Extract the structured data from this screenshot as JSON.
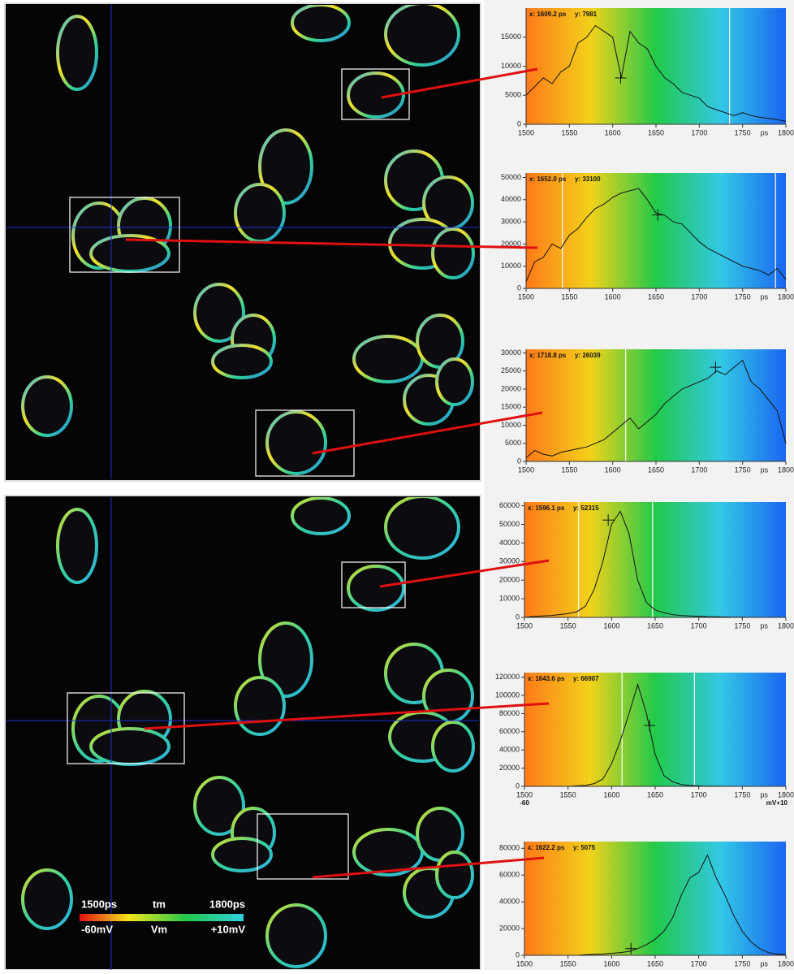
{
  "chart_data": [
    {
      "type": "line",
      "x_label": "ps",
      "xlim": [
        1500,
        1800
      ],
      "xticks": [
        1500,
        1550,
        1600,
        1650,
        1700,
        1750,
        1800
      ],
      "ylim": [
        0,
        20000
      ],
      "yticks": [
        0,
        5000,
        10000,
        15000
      ],
      "x": [
        1500,
        1510,
        1520,
        1530,
        1540,
        1550,
        1560,
        1570,
        1580,
        1590,
        1600,
        1610,
        1620,
        1630,
        1640,
        1650,
        1660,
        1670,
        1680,
        1690,
        1700,
        1710,
        1720,
        1730,
        1740,
        1750,
        1760,
        1770,
        1780,
        1790,
        1800
      ],
      "values": [
        5000,
        6500,
        8000,
        7000,
        9000,
        10000,
        14000,
        15000,
        17000,
        16000,
        15000,
        8000,
        16000,
        14000,
        13000,
        10000,
        8000,
        7000,
        5500,
        5000,
        4500,
        3000,
        2500,
        2000,
        1500,
        2000,
        1500,
        1200,
        1000,
        800,
        500
      ],
      "markers": [
        1735
      ],
      "cursor": {
        "x": {
          "value": 1609.2,
          "label": "x: 1609.2 ps"
        },
        "y": {
          "value": 7981,
          "label": "y: 7981"
        }
      }
    },
    {
      "type": "line",
      "x_label": "ps",
      "xlim": [
        1500,
        1800
      ],
      "xticks": [
        1500,
        1550,
        1600,
        1650,
        1700,
        1750,
        1800
      ],
      "ylim": [
        0,
        52000
      ],
      "yticks": [
        0,
        10000,
        20000,
        30000,
        40000,
        50000
      ],
      "x": [
        1500,
        1510,
        1520,
        1530,
        1540,
        1550,
        1560,
        1570,
        1580,
        1590,
        1600,
        1610,
        1620,
        1630,
        1640,
        1650,
        1660,
        1670,
        1680,
        1690,
        1700,
        1710,
        1720,
        1730,
        1740,
        1750,
        1760,
        1770,
        1780,
        1790,
        1800
      ],
      "values": [
        3000,
        12000,
        14000,
        20000,
        18000,
        24000,
        27000,
        32000,
        36000,
        38000,
        41000,
        43000,
        44000,
        45000,
        40000,
        34000,
        33000,
        30000,
        29000,
        25000,
        21000,
        18000,
        16000,
        14000,
        12000,
        10000,
        9000,
        8000,
        6000,
        9000,
        4000
      ],
      "markers": [
        1542,
        1788
      ],
      "cursor": {
        "x": {
          "value": 1652.0,
          "label": "x: 1652.0 ps"
        },
        "y": {
          "value": 33100,
          "label": "y: 33100"
        }
      }
    },
    {
      "type": "line",
      "x_label": "ps",
      "xlim": [
        1500,
        1800
      ],
      "xticks": [
        1500,
        1550,
        1600,
        1650,
        1700,
        1750,
        1800
      ],
      "ylim": [
        0,
        31000
      ],
      "yticks": [
        0,
        5000,
        10000,
        15000,
        20000,
        25000,
        30000
      ],
      "x": [
        1500,
        1510,
        1520,
        1530,
        1540,
        1550,
        1560,
        1570,
        1580,
        1590,
        1600,
        1610,
        1620,
        1630,
        1640,
        1650,
        1660,
        1670,
        1680,
        1690,
        1700,
        1710,
        1720,
        1730,
        1740,
        1750,
        1760,
        1770,
        1780,
        1790,
        1800
      ],
      "values": [
        1000,
        3000,
        2000,
        1500,
        2500,
        3000,
        3500,
        4000,
        5000,
        6000,
        8000,
        10000,
        12000,
        9000,
        11000,
        13000,
        16000,
        18000,
        20000,
        21000,
        22000,
        23000,
        25000,
        24000,
        26000,
        28000,
        22000,
        20000,
        17000,
        14000,
        5000
      ],
      "markers": [
        1615
      ],
      "cursor": {
        "x": {
          "value": 1718.8,
          "label": "x: 1718.8 ps"
        },
        "y": {
          "value": 26039,
          "label": "y: 26039"
        }
      }
    },
    {
      "type": "line",
      "x_label": "ps",
      "xlim": [
        1500,
        1800
      ],
      "xticks": [
        1500,
        1550,
        1600,
        1650,
        1700,
        1750,
        1800
      ],
      "ylim": [
        0,
        62000
      ],
      "yticks": [
        0,
        10000,
        20000,
        30000,
        40000,
        50000,
        60000
      ],
      "x": [
        1500,
        1510,
        1520,
        1530,
        1540,
        1550,
        1560,
        1570,
        1580,
        1590,
        1600,
        1610,
        1620,
        1630,
        1640,
        1650,
        1660,
        1670,
        1680,
        1690,
        1700,
        1710,
        1720,
        1730,
        1740,
        1750,
        1760,
        1770,
        1780,
        1790,
        1800
      ],
      "values": [
        0,
        500,
        800,
        1000,
        1500,
        2000,
        3000,
        6000,
        15000,
        30000,
        50000,
        57000,
        45000,
        20000,
        8000,
        4000,
        2500,
        1500,
        1000,
        800,
        600,
        400,
        300,
        200,
        100,
        100,
        0,
        0,
        0,
        0,
        0
      ],
      "markers": [
        1562,
        1647
      ],
      "cursor": {
        "x": {
          "value": 1596.1,
          "label": "x: 1596.1 ps"
        },
        "y": {
          "value": 52315,
          "label": "y: 52315"
        }
      }
    },
    {
      "type": "line",
      "x_label": "ps",
      "xlim": [
        1500,
        1800
      ],
      "xticks": [
        1500,
        1550,
        1600,
        1650,
        1700,
        1750,
        1800
      ],
      "ylim": [
        0,
        125000
      ],
      "yticks": [
        0,
        20000,
        40000,
        60000,
        80000,
        100000,
        120000
      ],
      "x": [
        1500,
        1510,
        1520,
        1530,
        1540,
        1550,
        1560,
        1570,
        1580,
        1590,
        1600,
        1610,
        1620,
        1630,
        1640,
        1650,
        1660,
        1670,
        1680,
        1690,
        1700,
        1710,
        1720,
        1730,
        1740,
        1750,
        1760,
        1770,
        1780,
        1790,
        1800
      ],
      "values": [
        0,
        0,
        0,
        0,
        0,
        0,
        500,
        1000,
        3000,
        8000,
        25000,
        50000,
        80000,
        112000,
        80000,
        35000,
        12000,
        5000,
        2000,
        1000,
        500,
        300,
        200,
        100,
        0,
        0,
        0,
        0,
        0,
        0,
        0
      ],
      "markers": [
        1612,
        1695
      ],
      "cursor": {
        "x": {
          "value": 1643.6,
          "label": "x: 1643.6 ps"
        },
        "y": {
          "value": 66907,
          "label": "y: 66907"
        }
      },
      "voltage_labels": [
        "-60",
        "mV",
        "+10"
      ]
    },
    {
      "type": "line",
      "x_label": "ps",
      "xlim": [
        1500,
        1800
      ],
      "xticks": [
        1500,
        1550,
        1600,
        1650,
        1700,
        1750,
        1800
      ],
      "ylim": [
        0,
        85000
      ],
      "yticks": [
        0,
        20000,
        40000,
        60000,
        80000
      ],
      "x": [
        1500,
        1510,
        1520,
        1530,
        1540,
        1550,
        1560,
        1570,
        1580,
        1590,
        1600,
        1610,
        1620,
        1630,
        1640,
        1650,
        1660,
        1670,
        1680,
        1690,
        1700,
        1710,
        1720,
        1730,
        1740,
        1750,
        1760,
        1770,
        1780,
        1790,
        1800
      ],
      "values": [
        0,
        0,
        0,
        0,
        0,
        0,
        0,
        500,
        800,
        1000,
        1500,
        2000,
        3000,
        5000,
        8000,
        12000,
        18000,
        28000,
        45000,
        58000,
        62000,
        75000,
        58000,
        45000,
        30000,
        18000,
        10000,
        5000,
        2000,
        1000,
        500
      ],
      "markers": [],
      "cursor": {
        "x": {
          "value": 1622.2,
          "label": "x: 1622.2 ps"
        },
        "y": {
          "value": 5075,
          "label": "y: 5075"
        }
      }
    }
  ],
  "colorbar": {
    "top": [
      "1500ps",
      "tm",
      "1800ps"
    ],
    "bottom": [
      "-60mV",
      "Vm",
      "+10mV"
    ]
  }
}
